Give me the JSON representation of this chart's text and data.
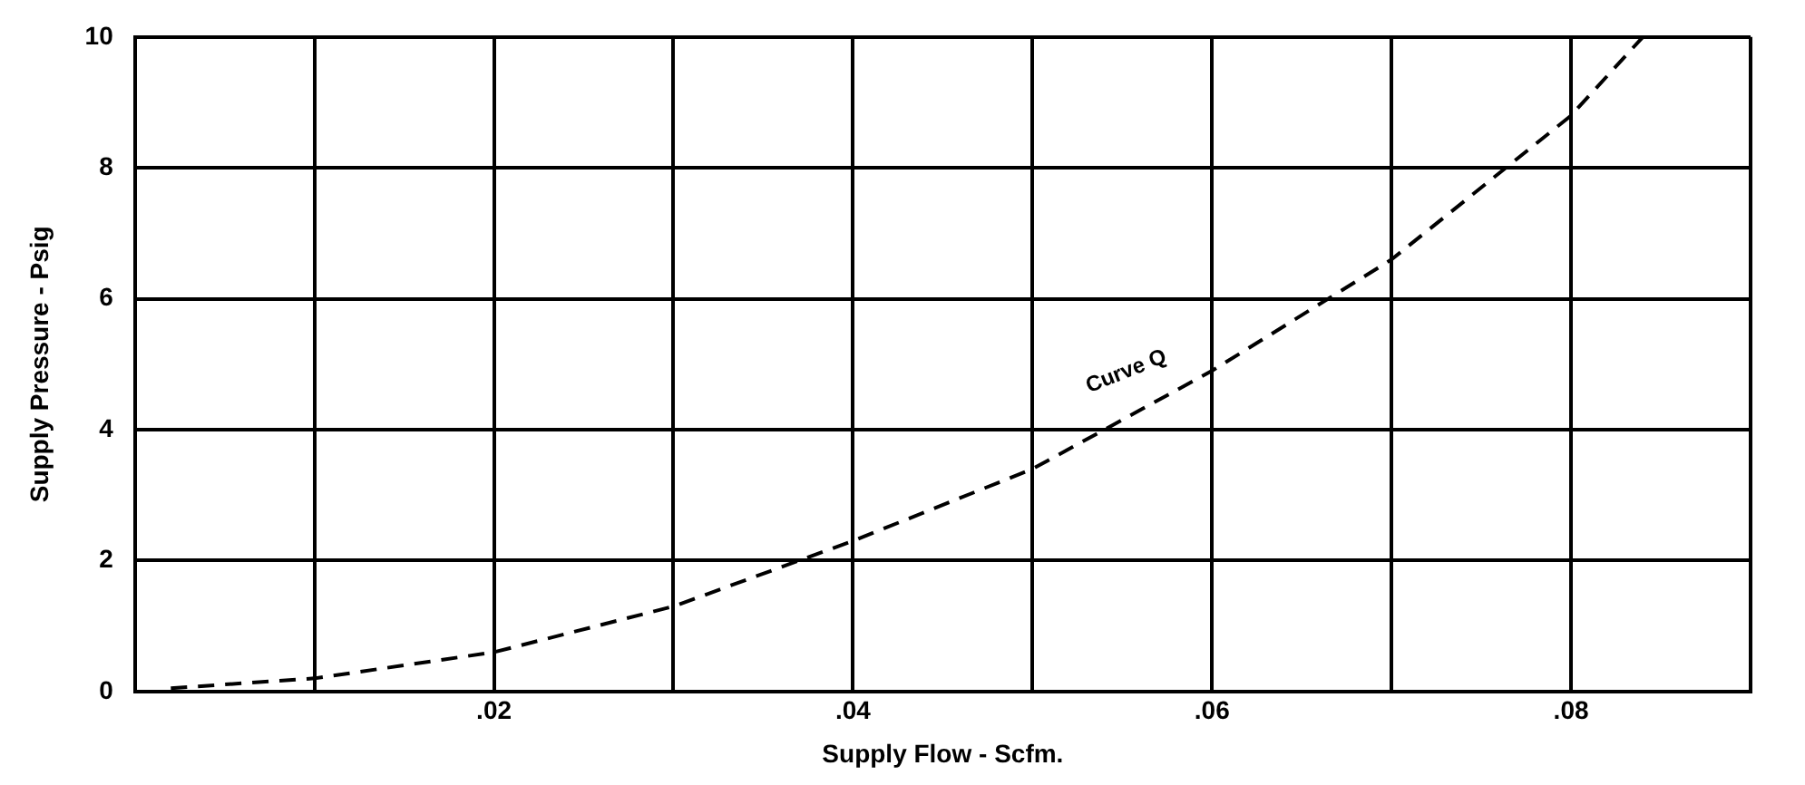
{
  "chart_data": {
    "type": "line",
    "xlabel": "Supply Flow - Scfm.",
    "ylabel": "Supply Pressure - Psig",
    "x": [
      0.002,
      0.01,
      0.02,
      0.03,
      0.037,
      0.04,
      0.05,
      0.06,
      0.07,
      0.08,
      0.084
    ],
    "series": [
      {
        "color": "#000000",
        "values": [
          0.05,
          0.2,
          0.6,
          1.3,
          2.0,
          2.3,
          3.4,
          4.9,
          6.6,
          8.8,
          10
        ]
      }
    ],
    "xlim": [
      0,
      0.09
    ],
    "xticks": [
      {
        "value": 0,
        "label": null
      },
      {
        "value": 0.01,
        "label": null
      },
      {
        "value": 0.02,
        "label": ".02"
      },
      {
        "value": 0.03,
        "label": null
      },
      {
        "value": 0.04,
        "label": ".04"
      },
      {
        "value": 0.05,
        "label": null
      },
      {
        "value": 0.06,
        "label": ".06"
      },
      {
        "value": 0.07,
        "label": null
      },
      {
        "value": 0.08,
        "label": ".08"
      },
      {
        "value": 0.09,
        "label": null
      }
    ],
    "ylim": [
      0,
      10
    ],
    "yticks": [
      0,
      2,
      4,
      6,
      8,
      10
    ],
    "annotations": [
      "Curve Q"
    ],
    "grid": true,
    "legend": false,
    "marker": "none",
    "line_style": "dashed"
  }
}
